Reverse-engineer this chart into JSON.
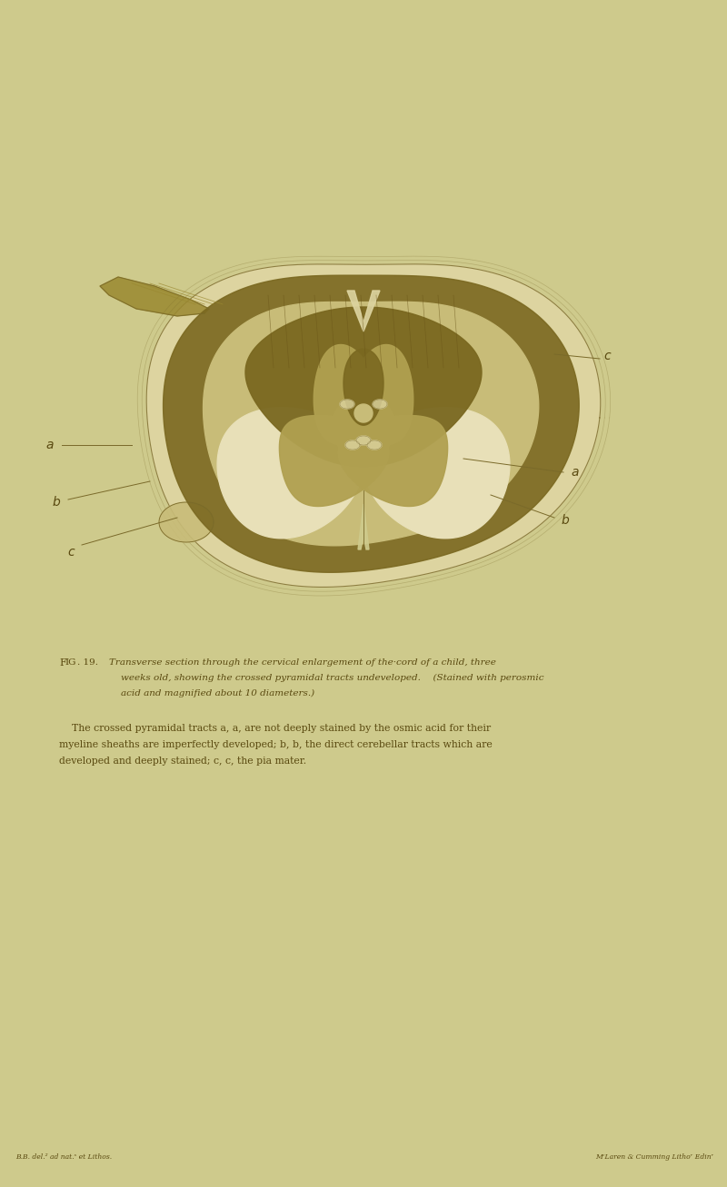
{
  "bg_color": "#ceca8c",
  "fig_width": 8.0,
  "fig_height": 13.07,
  "ink_color": "#7a6a2a",
  "text_color": "#5a4a10",
  "dark_stain": "#7a6820",
  "medium_stain": "#9a8830",
  "light_cream": "#ddd4a0",
  "very_light": "#e8e0b8",
  "bg_fill": "#ceca8c",
  "bottom_left": "B.B. del.² ad nat.ˢ et Lithos.",
  "bottom_right": "MᶜLaren & Cumming Lithoʳ Edinʳ",
  "fig_label": "Fig. 19.",
  "cap1": "Transverse section through the cervical enlargement of the·cord of a child, three",
  "cap2": "weeks old, showing the crossed pyramidal tracts undeveloped.  (Stained with perosmic",
  "cap3": "acid and magnified about 10 diameters.)",
  "body1": "The crossed pyramidal tracts ",
  "body1b": "a, a,",
  "body1c": " are not deeply stained by the osmic acid for their",
  "body2": "myeline sheaths are imperfectly developed; ",
  "body2b": "b, b,",
  "body2c": " the direct cerebellar tracts which are",
  "body3": "developed and deeply stained; ",
  "body3b": "c, c,",
  "body3c": " the pia mater."
}
